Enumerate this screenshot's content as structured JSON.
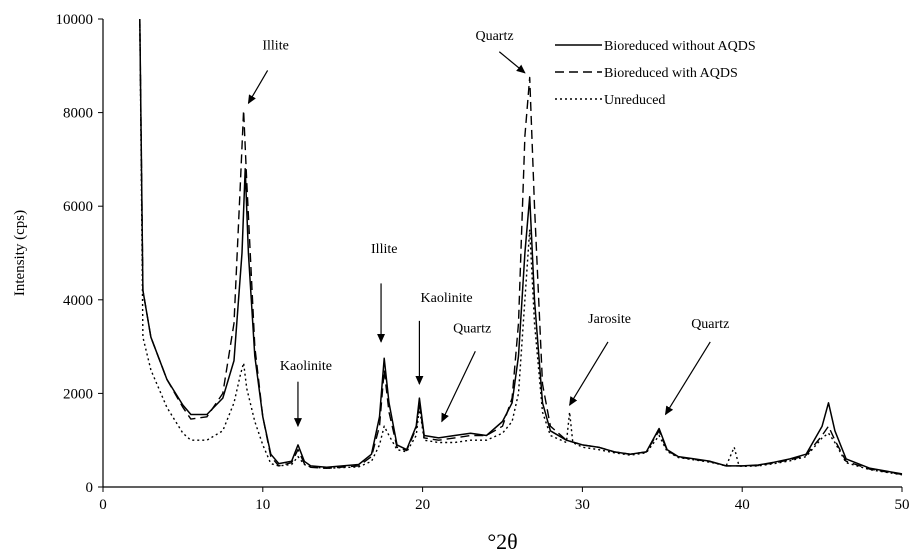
{
  "chart_data": {
    "type": "line",
    "title": "",
    "xlabel": "°2θ",
    "ylabel": "Intensity (cps)",
    "xlim": [
      0,
      50
    ],
    "ylim": [
      0,
      10000
    ],
    "x_ticks": [
      "0",
      "10",
      "20",
      "30",
      "40",
      "50"
    ],
    "y_ticks": [
      "0",
      "2000",
      "4000",
      "6000",
      "8000",
      "10000"
    ],
    "grid": false,
    "legend_position": "top-right",
    "series": [
      {
        "name": "Bioreduced without AQDS",
        "style": "solid",
        "points": [
          [
            2.3,
            10000
          ],
          [
            2.5,
            4200
          ],
          [
            3,
            3200
          ],
          [
            4,
            2300
          ],
          [
            5,
            1750
          ],
          [
            5.5,
            1550
          ],
          [
            6.5,
            1550
          ],
          [
            7.5,
            1900
          ],
          [
            8.2,
            2700
          ],
          [
            8.7,
            5000
          ],
          [
            8.9,
            6800
          ],
          [
            9.1,
            5000
          ],
          [
            9.5,
            2800
          ],
          [
            10,
            1500
          ],
          [
            10.5,
            700
          ],
          [
            11,
            500
          ],
          [
            11.8,
            550
          ],
          [
            12.2,
            900
          ],
          [
            12.6,
            550
          ],
          [
            13,
            450
          ],
          [
            14,
            420
          ],
          [
            16,
            480
          ],
          [
            16.8,
            700
          ],
          [
            17.3,
            1500
          ],
          [
            17.6,
            2750
          ],
          [
            17.9,
            1800
          ],
          [
            18.4,
            900
          ],
          [
            19,
            800
          ],
          [
            19.6,
            1300
          ],
          [
            19.8,
            1900
          ],
          [
            20.1,
            1100
          ],
          [
            21,
            1050
          ],
          [
            22,
            1100
          ],
          [
            23,
            1150
          ],
          [
            24,
            1100
          ],
          [
            25,
            1400
          ],
          [
            25.6,
            1800
          ],
          [
            26,
            2800
          ],
          [
            26.4,
            5000
          ],
          [
            26.7,
            6200
          ],
          [
            27,
            4000
          ],
          [
            27.5,
            1800
          ],
          [
            28,
            1200
          ],
          [
            29,
            1000
          ],
          [
            30,
            900
          ],
          [
            31,
            850
          ],
          [
            32,
            750
          ],
          [
            33,
            700
          ],
          [
            34,
            750
          ],
          [
            34.8,
            1250
          ],
          [
            35.3,
            800
          ],
          [
            36,
            650
          ],
          [
            37,
            600
          ],
          [
            38,
            550
          ],
          [
            39,
            450
          ],
          [
            40,
            450
          ],
          [
            41,
            470
          ],
          [
            42,
            530
          ],
          [
            43,
            600
          ],
          [
            44,
            700
          ],
          [
            45,
            1300
          ],
          [
            45.4,
            1800
          ],
          [
            45.8,
            1200
          ],
          [
            46.5,
            600
          ],
          [
            48,
            400
          ],
          [
            50,
            280
          ]
        ]
      },
      {
        "name": "Bioreduced with AQDS",
        "style": "dashed",
        "points": [
          [
            2.3,
            10000
          ],
          [
            2.5,
            4200
          ],
          [
            3,
            3200
          ],
          [
            4,
            2300
          ],
          [
            5,
            1700
          ],
          [
            5.5,
            1450
          ],
          [
            6.5,
            1500
          ],
          [
            7.5,
            2000
          ],
          [
            8.2,
            3500
          ],
          [
            8.6,
            6500
          ],
          [
            8.8,
            8050
          ],
          [
            9,
            6500
          ],
          [
            9.5,
            3000
          ],
          [
            10,
            1500
          ],
          [
            10.5,
            650
          ],
          [
            11,
            450
          ],
          [
            11.8,
            520
          ],
          [
            12.2,
            800
          ],
          [
            12.6,
            500
          ],
          [
            13,
            420
          ],
          [
            14,
            400
          ],
          [
            16,
            450
          ],
          [
            16.8,
            650
          ],
          [
            17.3,
            1300
          ],
          [
            17.6,
            2500
          ],
          [
            17.9,
            1600
          ],
          [
            18.4,
            850
          ],
          [
            19,
            780
          ],
          [
            19.6,
            1250
          ],
          [
            19.8,
            1800
          ],
          [
            20.1,
            1050
          ],
          [
            21,
            1000
          ],
          [
            22,
            1050
          ],
          [
            23,
            1100
          ],
          [
            24,
            1100
          ],
          [
            25,
            1300
          ],
          [
            25.6,
            1900
          ],
          [
            26,
            3500
          ],
          [
            26.4,
            7500
          ],
          [
            26.7,
            8750
          ],
          [
            27,
            6000
          ],
          [
            27.5,
            2200
          ],
          [
            28,
            1300
          ],
          [
            29,
            1000
          ],
          [
            30,
            900
          ],
          [
            31,
            850
          ],
          [
            32,
            750
          ],
          [
            33,
            700
          ],
          [
            34,
            750
          ],
          [
            34.8,
            1200
          ],
          [
            35.3,
            780
          ],
          [
            36,
            640
          ],
          [
            37,
            590
          ],
          [
            38,
            540
          ],
          [
            39,
            450
          ],
          [
            40,
            450
          ],
          [
            41,
            460
          ],
          [
            42,
            520
          ],
          [
            43,
            580
          ],
          [
            44,
            680
          ],
          [
            45,
            1100
          ],
          [
            45.4,
            1300
          ],
          [
            45.8,
            1000
          ],
          [
            46.5,
            550
          ],
          [
            48,
            380
          ],
          [
            50,
            270
          ]
        ]
      },
      {
        "name": "Unreduced",
        "style": "dotted",
        "points": [
          [
            2.3,
            10000
          ],
          [
            2.5,
            3200
          ],
          [
            3,
            2500
          ],
          [
            4,
            1700
          ],
          [
            5,
            1150
          ],
          [
            5.5,
            1000
          ],
          [
            6.5,
            1000
          ],
          [
            7.5,
            1200
          ],
          [
            8.2,
            1800
          ],
          [
            8.6,
            2400
          ],
          [
            8.8,
            2650
          ],
          [
            9,
            2100
          ],
          [
            9.5,
            1400
          ],
          [
            10,
            900
          ],
          [
            10.5,
            500
          ],
          [
            11,
            450
          ],
          [
            11.8,
            480
          ],
          [
            12.2,
            650
          ],
          [
            12.6,
            480
          ],
          [
            13,
            430
          ],
          [
            14,
            400
          ],
          [
            16,
            430
          ],
          [
            16.8,
            550
          ],
          [
            17.3,
            900
          ],
          [
            17.6,
            1300
          ],
          [
            17.9,
            1100
          ],
          [
            18.4,
            800
          ],
          [
            19,
            750
          ],
          [
            19.6,
            1100
          ],
          [
            19.8,
            1700
          ],
          [
            20.1,
            1000
          ],
          [
            21,
            950
          ],
          [
            22,
            950
          ],
          [
            23,
            1000
          ],
          [
            24,
            1000
          ],
          [
            25,
            1150
          ],
          [
            25.6,
            1400
          ],
          [
            26,
            2000
          ],
          [
            26.4,
            4000
          ],
          [
            26.7,
            5500
          ],
          [
            27,
            3500
          ],
          [
            27.5,
            1600
          ],
          [
            28,
            1100
          ],
          [
            29,
            950
          ],
          [
            29.2,
            1600
          ],
          [
            29.4,
            950
          ],
          [
            30,
            850
          ],
          [
            31,
            800
          ],
          [
            32,
            730
          ],
          [
            33,
            680
          ],
          [
            34,
            730
          ],
          [
            34.8,
            1100
          ],
          [
            35.3,
            760
          ],
          [
            36,
            630
          ],
          [
            37,
            580
          ],
          [
            38,
            530
          ],
          [
            39,
            450
          ],
          [
            39.5,
            850
          ],
          [
            39.8,
            450
          ],
          [
            40,
            440
          ],
          [
            41,
            450
          ],
          [
            42,
            500
          ],
          [
            43,
            560
          ],
          [
            44,
            650
          ],
          [
            45,
            1050
          ],
          [
            45.4,
            1150
          ],
          [
            45.8,
            950
          ],
          [
            46.5,
            520
          ],
          [
            48,
            370
          ],
          [
            50,
            260
          ]
        ]
      }
    ],
    "annotations": [
      {
        "text": "Illite",
        "text_x": 10.8,
        "text_y": 9350,
        "arrow_from": [
          10.3,
          8900
        ],
        "arrow_to": [
          9.1,
          8200
        ]
      },
      {
        "text": "Kaolinite",
        "text_x": 12.7,
        "text_y": 2500,
        "arrow_from": [
          12.2,
          2250
        ],
        "arrow_to": [
          12.2,
          1300
        ]
      },
      {
        "text": "Illite",
        "text_x": 17.6,
        "text_y": 5000,
        "arrow_from": [
          17.4,
          4350
        ],
        "arrow_to": [
          17.4,
          3100
        ]
      },
      {
        "text": "Kaolinite",
        "text_x": 21.5,
        "text_y": 3950,
        "arrow_from": [
          19.8,
          3550
        ],
        "arrow_to": [
          19.8,
          2200
        ]
      },
      {
        "text": "Quartz",
        "text_x": 23.1,
        "text_y": 3300,
        "arrow_from": [
          23.3,
          2900
        ],
        "arrow_to": [
          21.2,
          1400
        ]
      },
      {
        "text": "Quartz",
        "text_x": 24.5,
        "text_y": 9550,
        "arrow_from": [
          24.8,
          9300
        ],
        "arrow_to": [
          26.4,
          8850
        ]
      },
      {
        "text": "Jarosite",
        "text_x": 31.7,
        "text_y": 3500,
        "arrow_from": [
          31.6,
          3100
        ],
        "arrow_to": [
          29.2,
          1750
        ]
      },
      {
        "text": "Quartz",
        "text_x": 38.0,
        "text_y": 3400,
        "arrow_from": [
          38.0,
          3100
        ],
        "arrow_to": [
          35.2,
          1550
        ]
      }
    ]
  }
}
